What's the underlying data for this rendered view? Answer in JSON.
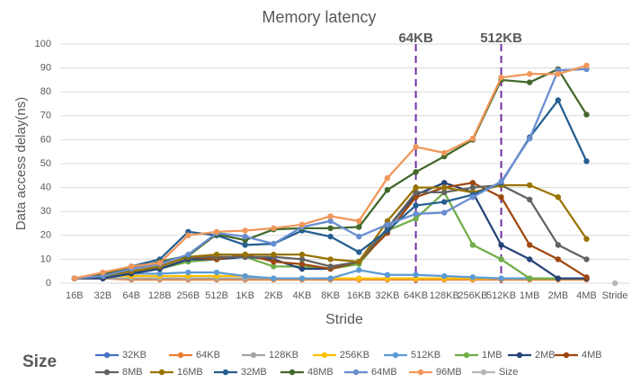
{
  "chart_data": {
    "type": "line",
    "title": "Memory latency",
    "x_label": "Stride",
    "y_label": "Data access delay(ns)",
    "legend_title": "Size",
    "categories": [
      "16B",
      "32B",
      "64B",
      "128B",
      "256B",
      "512B",
      "1KB",
      "2KB",
      "4KB",
      "8KB",
      "16KB",
      "32KB",
      "64KB",
      "128KB",
      "256KB",
      "512KB",
      "1MB",
      "2MB",
      "4MB",
      "Stride"
    ],
    "ylim": [
      0,
      100
    ],
    "yticks": [
      0,
      10,
      20,
      30,
      40,
      50,
      60,
      70,
      80,
      90,
      100
    ],
    "grid": true,
    "annotations": [
      {
        "label": "64KB",
        "category": "64KB"
      },
      {
        "label": "512KB",
        "category": "512KB"
      }
    ],
    "series": [
      {
        "name": "32KB",
        "color": "#4472c4",
        "values": [
          2,
          2,
          2,
          2,
          2,
          2,
          2,
          2,
          2,
          2,
          2,
          2,
          2,
          2,
          2,
          2,
          2,
          2,
          2,
          null
        ]
      },
      {
        "name": "64KB",
        "color": "#ed7d31",
        "values": [
          2,
          2,
          1.5,
          1.5,
          1.5,
          1.5,
          1.5,
          1.5,
          1.5,
          1.5,
          1.5,
          1.5,
          1.5,
          1.5,
          1.5,
          1.5,
          1.5,
          1.5,
          1.5,
          null
        ]
      },
      {
        "name": "128KB",
        "color": "#a5a5a5",
        "values": [
          2,
          2,
          2,
          2,
          2,
          2,
          2,
          2,
          2,
          2,
          2,
          2,
          2,
          2,
          2,
          2,
          2,
          2,
          2,
          null
        ]
      },
      {
        "name": "256KB",
        "color": "#ffc000",
        "values": [
          2,
          3,
          3,
          3,
          3,
          3,
          3,
          2,
          2,
          2,
          2,
          2,
          2,
          2,
          2,
          2,
          2,
          2,
          2,
          null
        ]
      },
      {
        "name": "512KB",
        "color": "#5b9bd5",
        "values": [
          2,
          3,
          4,
          4,
          4.5,
          4.5,
          3,
          2,
          2,
          2,
          5.5,
          3.5,
          3.5,
          3,
          2.5,
          2,
          2,
          2,
          2,
          null
        ]
      },
      {
        "name": "1MB",
        "color": "#70ad47",
        "values": [
          2,
          3,
          5,
          6,
          9,
          10,
          11,
          7,
          7,
          6,
          8,
          22,
          27,
          38,
          16,
          10,
          2,
          2,
          2,
          null
        ]
      },
      {
        "name": "2MB",
        "color": "#264478",
        "values": [
          2,
          2,
          4,
          6,
          10,
          10,
          11,
          10,
          6,
          6,
          9,
          23,
          37,
          42,
          38,
          16,
          10,
          2,
          2,
          null
        ]
      },
      {
        "name": "4MB",
        "color": "#9e480e",
        "values": [
          2,
          3,
          5,
          7,
          11,
          10,
          12,
          9,
          8,
          6,
          9,
          21,
          36,
          40,
          42,
          36,
          16,
          10,
          2.5,
          null
        ]
      },
      {
        "name": "8MB",
        "color": "#636363",
        "values": [
          2,
          3,
          5,
          7,
          11,
          11,
          11,
          11,
          10,
          7,
          9,
          23,
          38,
          38,
          40,
          41,
          35,
          16,
          10,
          null
        ]
      },
      {
        "name": "16MB",
        "color": "#997300",
        "values": [
          2,
          3,
          5,
          7,
          11,
          12,
          12,
          12,
          12,
          10,
          9,
          26,
          40,
          40,
          38,
          41,
          41,
          36,
          18.5,
          null
        ]
      },
      {
        "name": "32MB",
        "color": "#255e91",
        "values": [
          2,
          4,
          7,
          10,
          21.5,
          20,
          16,
          16.5,
          22,
          19.5,
          13,
          22,
          32.5,
          34,
          37,
          42,
          61,
          76.5,
          51,
          null
        ]
      },
      {
        "name": "48MB",
        "color": "#43682b",
        "values": [
          2,
          4,
          6,
          9,
          11.5,
          20.5,
          18,
          22.5,
          23,
          23,
          23.5,
          39,
          46.5,
          53,
          60,
          85,
          84,
          89.5,
          70.5,
          null
        ]
      },
      {
        "name": "64MB",
        "color": "#698ed0",
        "values": [
          2,
          3,
          6,
          8,
          12,
          21,
          19.5,
          16.5,
          23.5,
          26,
          19.5,
          24.5,
          29,
          29.5,
          36,
          42.5,
          60.5,
          89,
          89.5,
          null
        ]
      },
      {
        "name": "96MB",
        "color": "#f1975a",
        "values": [
          2,
          4.5,
          7,
          8.5,
          20,
          21.5,
          22,
          23,
          24.5,
          28,
          26,
          44,
          57,
          54.5,
          60.5,
          86,
          87.5,
          87.5,
          91,
          null
        ]
      },
      {
        "name": "Size",
        "color": "#b7b7b7",
        "values": [
          null,
          null,
          null,
          null,
          null,
          null,
          null,
          null,
          null,
          null,
          null,
          null,
          null,
          null,
          null,
          null,
          null,
          null,
          null,
          0
        ]
      }
    ]
  }
}
